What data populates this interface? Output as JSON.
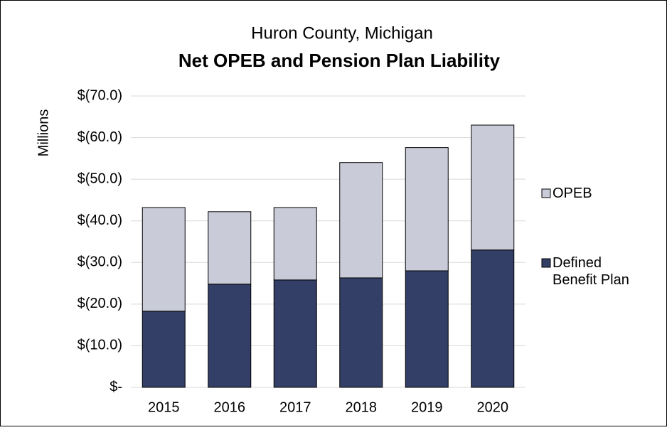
{
  "chart_data": {
    "type": "stacked_bar",
    "subtitle": "Huron County, Michigan",
    "title": "Net OPEB and Pension Plan Liability",
    "y_label": "Millions",
    "categories": [
      "2015",
      "2016",
      "2017",
      "2018",
      "2019",
      "2020"
    ],
    "series": [
      {
        "name": "Defined Benefit Plan",
        "color": "#333f66",
        "values": [
          -18.3,
          -24.8,
          -25.8,
          -26.3,
          -28.0,
          -33.0
        ]
      },
      {
        "name": "OPEB",
        "color": "#c9ccd8",
        "values": [
          -24.9,
          -17.4,
          -17.4,
          -27.7,
          -29.6,
          -30.0
        ]
      }
    ],
    "ylim": [
      0,
      -70
    ],
    "yticks": [
      {
        "value": 0,
        "label": "$-"
      },
      {
        "value": -10,
        "label": "$(10.0)"
      },
      {
        "value": -20,
        "label": "$(20.0)"
      },
      {
        "value": -30,
        "label": "$(30.0)"
      },
      {
        "value": -40,
        "label": "$(40.0)"
      },
      {
        "value": -50,
        "label": "$(50.0)"
      },
      {
        "value": -60,
        "label": "$(60.0)"
      },
      {
        "value": -70,
        "label": "$(70.0)"
      }
    ],
    "grid": true,
    "legend": "right"
  }
}
